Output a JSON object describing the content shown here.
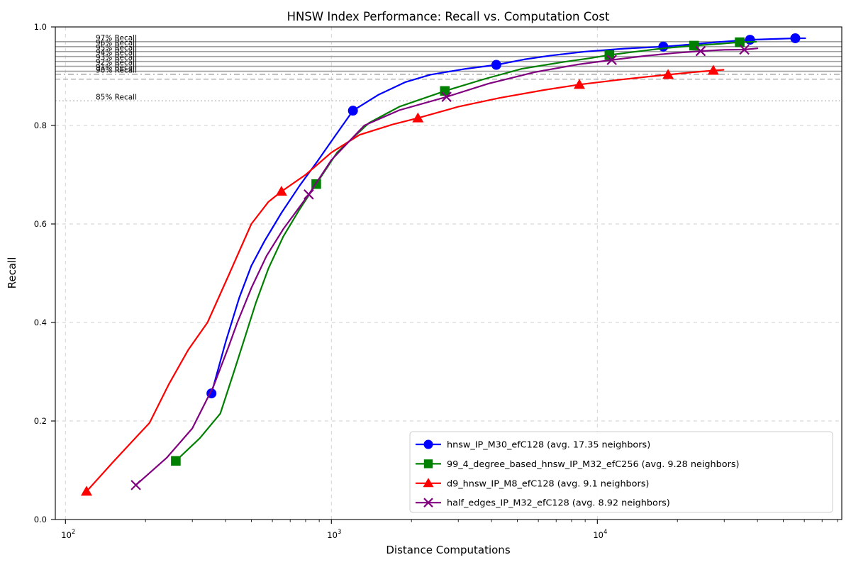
{
  "chart_data": {
    "type": "line",
    "title": "HNSW Index Performance: Recall vs. Computation Cost",
    "xlabel": "Distance Computations",
    "ylabel": "Recall",
    "x_scale": "log",
    "xlim": [
      91.6,
      83000
    ],
    "ylim": [
      0.0,
      1.0
    ],
    "grid": true,
    "legend_position": "lower right",
    "x_ticks": [
      {
        "v": 100,
        "base": "10",
        "exp": "2"
      },
      {
        "v": 1000,
        "base": "10",
        "exp": "3"
      },
      {
        "v": 10000,
        "base": "10",
        "exp": "4"
      }
    ],
    "y_ticks": [
      {
        "v": 0.0,
        "label": "0.0"
      },
      {
        "v": 0.2,
        "label": "0.2"
      },
      {
        "v": 0.4,
        "label": "0.4"
      },
      {
        "v": 0.6,
        "label": "0.6"
      },
      {
        "v": 0.8,
        "label": "0.8"
      },
      {
        "v": 1.0,
        "label": "1.0"
      }
    ],
    "reference_lines": [
      {
        "r": 0.97,
        "style": "solid",
        "label": "97% Recall"
      },
      {
        "r": 0.96,
        "style": "solid",
        "label": "96% Recall"
      },
      {
        "r": 0.95,
        "style": "solid",
        "label": "95% Recall"
      },
      {
        "r": 0.94,
        "style": "solid",
        "label": "94% Recall"
      },
      {
        "r": 0.93,
        "style": "solid",
        "label": "93% Recall"
      },
      {
        "r": 0.92,
        "style": "solid",
        "label": "92% Recall"
      },
      {
        "r": 0.91,
        "style": "solid",
        "label": "91% Recall"
      },
      {
        "r": 0.904,
        "style": "dashdot",
        "label": "90% Recall"
      },
      {
        "r": 0.894,
        "style": "dashed",
        "label": null
      },
      {
        "r": 0.85,
        "style": "dotted",
        "label": "85% Recall"
      }
    ],
    "series": [
      {
        "name": "hnsw_IP_M30_efC128",
        "label": "hnsw_IP_M30_efC128 (avg. 17.35 neighbors)",
        "color": "#0000ff",
        "marker": "circle",
        "points": [
          [
            354,
            0.256
          ],
          [
            400,
            0.36
          ],
          [
            450,
            0.45
          ],
          [
            500,
            0.515
          ],
          [
            560,
            0.565
          ],
          [
            650,
            0.623
          ],
          [
            760,
            0.678
          ],
          [
            888,
            0.728
          ],
          [
            1000,
            0.768
          ],
          [
            1205,
            0.83
          ],
          [
            1500,
            0.862
          ],
          [
            1900,
            0.888
          ],
          [
            2355,
            0.903
          ],
          [
            3200,
            0.915
          ],
          [
            4170,
            0.923
          ],
          [
            5300,
            0.934
          ],
          [
            6700,
            0.942
          ],
          [
            9000,
            0.95
          ],
          [
            12600,
            0.956
          ],
          [
            17700,
            0.96
          ],
          [
            22000,
            0.964
          ],
          [
            28000,
            0.969
          ],
          [
            37500,
            0.974
          ],
          [
            46000,
            0.9755
          ],
          [
            55500,
            0.977
          ],
          [
            60500,
            0.977
          ]
        ],
        "marker_points": [
          [
            354,
            0.256
          ],
          [
            1205,
            0.83
          ],
          [
            4170,
            0.923
          ],
          [
            17700,
            0.96
          ],
          [
            37500,
            0.974
          ],
          [
            55500,
            0.977
          ]
        ]
      },
      {
        "name": "99_4_degree_based_hnsw_IP_M32_efC256",
        "label": "99_4_degree_based_hnsw_IP_M32_efC256 (avg. 9.28 neighbors)",
        "color": "#008000",
        "marker": "square",
        "points": [
          [
            260,
            0.119
          ],
          [
            320,
            0.165
          ],
          [
            382,
            0.215
          ],
          [
            430,
            0.3
          ],
          [
            470,
            0.365
          ],
          [
            520,
            0.44
          ],
          [
            580,
            0.51
          ],
          [
            660,
            0.575
          ],
          [
            760,
            0.63
          ],
          [
            877,
            0.681
          ],
          [
            1050,
            0.745
          ],
          [
            1384,
            0.805
          ],
          [
            1800,
            0.838
          ],
          [
            2670,
            0.87
          ],
          [
            3800,
            0.895
          ],
          [
            5200,
            0.915
          ],
          [
            7500,
            0.929
          ],
          [
            9500,
            0.937
          ],
          [
            11100,
            0.943
          ],
          [
            14000,
            0.95
          ],
          [
            18000,
            0.957
          ],
          [
            23100,
            0.962
          ],
          [
            28500,
            0.9655
          ],
          [
            34300,
            0.969
          ],
          [
            39500,
            0.97
          ]
        ],
        "marker_points": [
          [
            260,
            0.119
          ],
          [
            877,
            0.681
          ],
          [
            2670,
            0.87
          ],
          [
            11100,
            0.943
          ],
          [
            23100,
            0.962
          ],
          [
            34300,
            0.969
          ]
        ]
      },
      {
        "name": "d9_hnsw_IP_M8_efC128",
        "label": "d9_hnsw_IP_M8_efC128 (avg. 9.1 neighbors)",
        "color": "#ff0000",
        "marker": "triangle",
        "points": [
          [
            120,
            0.057
          ],
          [
            150,
            0.115
          ],
          [
            185,
            0.168
          ],
          [
            207,
            0.196
          ],
          [
            245,
            0.275
          ],
          [
            290,
            0.345
          ],
          [
            342,
            0.4
          ],
          [
            414,
            0.5
          ],
          [
            500,
            0.6
          ],
          [
            580,
            0.645
          ],
          [
            649,
            0.666
          ],
          [
            800,
            0.7
          ],
          [
            1000,
            0.745
          ],
          [
            1277,
            0.781
          ],
          [
            1700,
            0.802
          ],
          [
            2115,
            0.815
          ],
          [
            3000,
            0.838
          ],
          [
            4300,
            0.856
          ],
          [
            6300,
            0.872
          ],
          [
            8560,
            0.883
          ],
          [
            12000,
            0.8925
          ],
          [
            15500,
            0.899
          ],
          [
            18450,
            0.903
          ],
          [
            23000,
            0.908
          ],
          [
            27300,
            0.9115
          ],
          [
            29800,
            0.913
          ]
        ],
        "marker_points": [
          [
            120,
            0.057
          ],
          [
            649,
            0.666
          ],
          [
            2115,
            0.815
          ],
          [
            8560,
            0.883
          ],
          [
            18450,
            0.903
          ],
          [
            27300,
            0.9115
          ]
        ]
      },
      {
        "name": "half_edges_IP_M32_efC128",
        "label": "half_edges_IP_M32_efC128 (avg. 8.92 neighbors)",
        "color": "#800080",
        "marker": "x",
        "points": [
          [
            184,
            0.07
          ],
          [
            240,
            0.125
          ],
          [
            300,
            0.185
          ],
          [
            360,
            0.27
          ],
          [
            410,
            0.35
          ],
          [
            443,
            0.4
          ],
          [
            500,
            0.47
          ],
          [
            570,
            0.535
          ],
          [
            660,
            0.59
          ],
          [
            822,
            0.66
          ],
          [
            1000,
            0.73
          ],
          [
            1330,
            0.8
          ],
          [
            1800,
            0.831
          ],
          [
            2710,
            0.858
          ],
          [
            3900,
            0.885
          ],
          [
            5800,
            0.908
          ],
          [
            8500,
            0.924
          ],
          [
            11330,
            0.933
          ],
          [
            15000,
            0.941
          ],
          [
            19500,
            0.947
          ],
          [
            24460,
            0.951
          ],
          [
            30000,
            0.9535
          ],
          [
            35700,
            0.954
          ],
          [
            40000,
            0.9565
          ]
        ],
        "marker_points": [
          [
            184,
            0.07
          ],
          [
            822,
            0.66
          ],
          [
            2710,
            0.858
          ],
          [
            11330,
            0.933
          ],
          [
            24460,
            0.951
          ],
          [
            35700,
            0.954
          ]
        ]
      }
    ],
    "colors": {
      "grid": "#cfcfcf",
      "ref_solid": "#a0a0a0",
      "ref_dashdot": "#999999",
      "ref_dashed": "#aaaaaa",
      "ref_dotted": "#b5b5b5",
      "spine": "#000000",
      "legend_border": "#cccccc"
    }
  }
}
